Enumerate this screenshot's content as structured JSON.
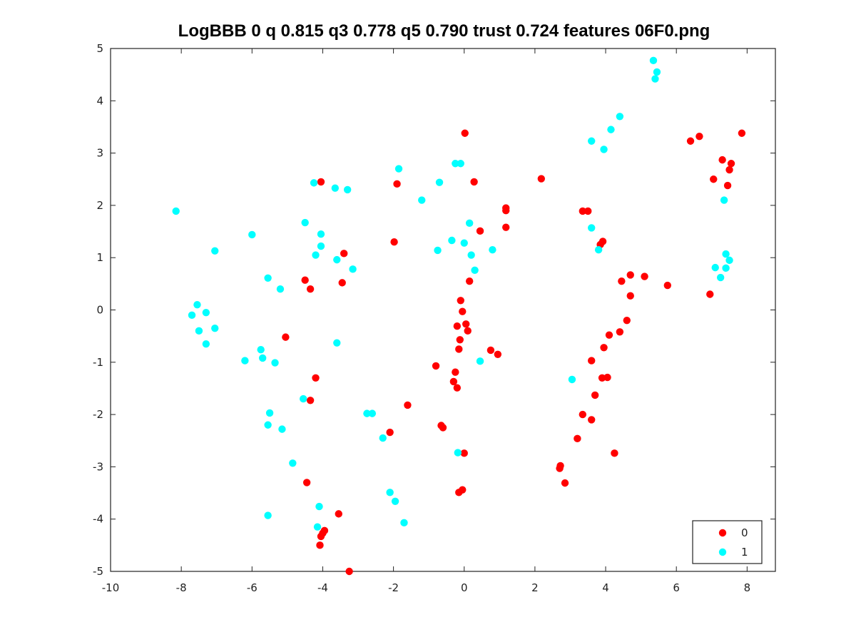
{
  "chart_data": {
    "type": "scatter",
    "title": "LogBBB 0 q 0.815 q3 0.778 q5 0.790 trust 0.724 features 06F0.png",
    "xlabel": "",
    "ylabel": "",
    "xlim": [
      -10,
      8.8
    ],
    "ylim": [
      -5,
      5
    ],
    "xticks": [
      -10,
      -8,
      -6,
      -4,
      -2,
      0,
      2,
      4,
      6,
      8
    ],
    "yticks": [
      -5,
      -4,
      -3,
      -2,
      -1,
      0,
      1,
      2,
      3,
      4,
      5
    ],
    "grid": false,
    "legend_position": "bottom-right",
    "series": [
      {
        "name": "0",
        "color": "#ff0000",
        "points": [
          [
            0.02,
            3.38
          ],
          [
            -1.9,
            2.41
          ],
          [
            -4.05,
            2.45
          ],
          [
            0.28,
            2.45
          ],
          [
            2.18,
            2.51
          ],
          [
            -1.98,
            1.3
          ],
          [
            0.45,
            1.51
          ],
          [
            1.18,
            1.9
          ],
          [
            1.18,
            1.95
          ],
          [
            1.18,
            1.58
          ],
          [
            3.35,
            1.89
          ],
          [
            3.5,
            1.89
          ],
          [
            3.85,
            1.25
          ],
          [
            3.92,
            1.31
          ],
          [
            -3.4,
            1.08
          ],
          [
            -3.45,
            0.52
          ],
          [
            -4.5,
            0.57
          ],
          [
            -4.35,
            0.4
          ],
          [
            -5.05,
            -0.52
          ],
          [
            0.15,
            0.55
          ],
          [
            -0.1,
            0.18
          ],
          [
            -0.05,
            -0.03
          ],
          [
            0.05,
            -0.27
          ],
          [
            0.1,
            -0.4
          ],
          [
            -0.2,
            -0.31
          ],
          [
            -0.12,
            -0.57
          ],
          [
            -0.15,
            -0.75
          ],
          [
            0.75,
            -0.77
          ],
          [
            0.95,
            -0.85
          ],
          [
            -0.8,
            -1.07
          ],
          [
            -0.25,
            -1.19
          ],
          [
            -0.3,
            -1.37
          ],
          [
            -0.2,
            -1.49
          ],
          [
            -4.2,
            -1.3
          ],
          [
            -4.35,
            -1.73
          ],
          [
            -1.6,
            -1.82
          ],
          [
            -0.65,
            -2.21
          ],
          [
            -0.6,
            -2.25
          ],
          [
            -2.1,
            -2.34
          ],
          [
            0.0,
            -2.74
          ],
          [
            -0.15,
            -3.49
          ],
          [
            -0.05,
            -3.44
          ],
          [
            -4.45,
            -3.3
          ],
          [
            -3.55,
            -3.9
          ],
          [
            -3.95,
            -4.22
          ],
          [
            -4.0,
            -4.27
          ],
          [
            -4.05,
            -4.33
          ],
          [
            -4.08,
            -4.5
          ],
          [
            -3.25,
            -5.0
          ],
          [
            6.4,
            3.23
          ],
          [
            6.65,
            3.32
          ],
          [
            7.3,
            2.87
          ],
          [
            7.55,
            2.8
          ],
          [
            7.5,
            2.68
          ],
          [
            7.05,
            2.5
          ],
          [
            7.45,
            2.38
          ],
          [
            7.85,
            3.38
          ],
          [
            6.95,
            0.3
          ],
          [
            5.75,
            0.47
          ],
          [
            5.1,
            0.64
          ],
          [
            4.7,
            0.67
          ],
          [
            4.45,
            0.55
          ],
          [
            4.7,
            0.27
          ],
          [
            4.6,
            -0.2
          ],
          [
            4.4,
            -0.42
          ],
          [
            4.1,
            -0.48
          ],
          [
            3.95,
            -0.72
          ],
          [
            3.6,
            -0.97
          ],
          [
            3.9,
            -1.3
          ],
          [
            4.05,
            -1.29
          ],
          [
            3.7,
            -1.63
          ],
          [
            3.35,
            -2.0
          ],
          [
            3.6,
            -2.1
          ],
          [
            3.2,
            -2.46
          ],
          [
            4.25,
            -2.74
          ],
          [
            2.72,
            -2.98
          ],
          [
            2.7,
            -3.03
          ],
          [
            2.85,
            -3.31
          ]
        ]
      },
      {
        "name": "1",
        "color": "#00ffff",
        "points": [
          [
            -8.15,
            1.89
          ],
          [
            -7.05,
            1.13
          ],
          [
            -7.55,
            0.1
          ],
          [
            -7.7,
            -0.1
          ],
          [
            -7.3,
            -0.05
          ],
          [
            -7.5,
            -0.4
          ],
          [
            -7.05,
            -0.35
          ],
          [
            -7.3,
            -0.65
          ],
          [
            -6.2,
            -0.97
          ],
          [
            -5.75,
            -0.76
          ],
          [
            -5.7,
            -0.92
          ],
          [
            -5.35,
            -1.01
          ],
          [
            -6.0,
            1.44
          ],
          [
            -5.55,
            0.61
          ],
          [
            -5.2,
            0.4
          ],
          [
            -4.5,
            1.67
          ],
          [
            -4.25,
            2.43
          ],
          [
            -3.65,
            2.33
          ],
          [
            -3.3,
            2.3
          ],
          [
            -4.05,
            1.45
          ],
          [
            -4.05,
            1.22
          ],
          [
            -4.2,
            1.05
          ],
          [
            -3.6,
            0.96
          ],
          [
            -3.15,
            0.78
          ],
          [
            -3.6,
            -0.63
          ],
          [
            -4.55,
            -1.7
          ],
          [
            -5.5,
            -1.97
          ],
          [
            -5.55,
            -2.2
          ],
          [
            -5.15,
            -2.28
          ],
          [
            -4.85,
            -2.93
          ],
          [
            -5.55,
            -3.93
          ],
          [
            -4.1,
            -3.76
          ],
          [
            -4.15,
            -4.15
          ],
          [
            -2.75,
            -1.98
          ],
          [
            -2.6,
            -1.98
          ],
          [
            -2.3,
            -2.45
          ],
          [
            -2.1,
            -3.49
          ],
          [
            -1.95,
            -3.66
          ],
          [
            -1.7,
            -4.07
          ],
          [
            -1.85,
            2.7
          ],
          [
            -1.2,
            2.1
          ],
          [
            -0.7,
            2.44
          ],
          [
            -0.25,
            2.8
          ],
          [
            -0.1,
            2.8
          ],
          [
            -0.75,
            1.14
          ],
          [
            -0.35,
            1.33
          ],
          [
            0.0,
            1.28
          ],
          [
            0.15,
            1.66
          ],
          [
            0.8,
            1.15
          ],
          [
            0.2,
            1.05
          ],
          [
            0.3,
            0.76
          ],
          [
            0.45,
            -0.98
          ],
          [
            -0.18,
            -2.73
          ],
          [
            3.6,
            3.23
          ],
          [
            3.95,
            3.07
          ],
          [
            4.15,
            3.45
          ],
          [
            4.4,
            3.7
          ],
          [
            5.35,
            4.77
          ],
          [
            5.45,
            4.55
          ],
          [
            5.4,
            4.42
          ],
          [
            3.6,
            1.57
          ],
          [
            3.8,
            1.15
          ],
          [
            3.05,
            -1.33
          ],
          [
            7.35,
            2.1
          ],
          [
            7.4,
            1.07
          ],
          [
            7.5,
            0.95
          ],
          [
            7.4,
            0.8
          ],
          [
            7.1,
            0.81
          ],
          [
            7.25,
            0.62
          ]
        ]
      }
    ]
  }
}
